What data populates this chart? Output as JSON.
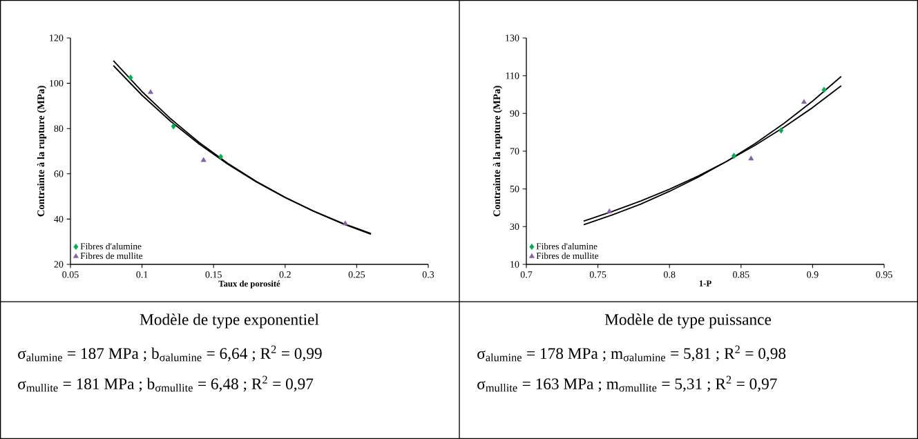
{
  "chart_data": [
    {
      "type": "scatter",
      "xlabel": "Taux de porosité",
      "ylabel": "Contrainte à la rupture (MPa)",
      "xlim": [
        0.05,
        0.3
      ],
      "ylim": [
        20,
        120
      ],
      "xticks": [
        0.05,
        0.1,
        0.15,
        0.2,
        0.25,
        0.3
      ],
      "yticks": [
        20,
        40,
        60,
        80,
        100,
        120
      ],
      "legend": "bottom left",
      "annotations": [
        "Modèle de type exponentiel",
        "σ$_{alumine}$ = 187 MPa ; b$_{σalumine}$ = 6,64 ; R$^{2}$ = 0,99",
        "σ$_{mullite}$ = 181 MPa ; b$_{σmullite}$ = 6,48 ; R$^{2}$ = 0,97"
      ],
      "series": [
        {
          "name": "Fibres d'alumine",
          "color": "#00b050",
          "marker": "diamond",
          "x": [
            0.092,
            0.122,
            0.155
          ],
          "values": [
            102.5,
            81,
            67.5
          ]
        },
        {
          "name": "Fibres de mullite",
          "color": "#8064a2",
          "marker": "triangle",
          "x": [
            0.106,
            0.143,
            0.242
          ],
          "values": [
            96,
            66,
            38
          ]
        },
        {
          "type": "line",
          "color": "#000000",
          "line_style": "solid",
          "x": [
            0.08,
            0.1,
            0.12,
            0.14,
            0.16,
            0.18,
            0.2,
            0.22,
            0.24,
            0.26
          ],
          "values": [
            110.0,
            96.3,
            84.3,
            73.8,
            64.6,
            56.6,
            49.6,
            43.4,
            38.0,
            33.3
          ]
        },
        {
          "type": "line",
          "color": "#000000",
          "line_style": "solid",
          "x": [
            0.08,
            0.1,
            0.12,
            0.14,
            0.16,
            0.18,
            0.2,
            0.22,
            0.24,
            0.26
          ],
          "values": [
            107.8,
            94.7,
            83.2,
            73.1,
            64.2,
            56.4,
            49.5,
            43.5,
            38.2,
            33.6
          ]
        }
      ]
    },
    {
      "type": "scatter",
      "xlabel": "1-P",
      "ylabel": "Contrainte à la rupture (MPa)",
      "xlim": [
        0.7,
        0.95
      ],
      "ylim": [
        10,
        130
      ],
      "xticks": [
        0.7,
        0.75,
        0.8,
        0.85,
        0.9,
        0.95
      ],
      "yticks": [
        10,
        30,
        50,
        70,
        90,
        110,
        130
      ],
      "legend": "bottom left",
      "annotations": [
        "Modèle de type puissance",
        "σ$_{alumine}$ = 178 MPa ; m$_{σalumine}$ = 5,81 ; R$^{2}$ = 0,98",
        "σ$_{mullite}$ = 163 MPa ; m$_{σmullite}$ = 5,31 ; R$^{2}$ = 0,97"
      ],
      "series": [
        {
          "name": "Fibres d'alumine",
          "color": "#00b050",
          "marker": "diamond",
          "x": [
            0.908,
            0.878,
            0.845
          ],
          "values": [
            102.5,
            81,
            67.5
          ]
        },
        {
          "name": "Fibres de mullite",
          "color": "#8064a2",
          "marker": "triangle",
          "x": [
            0.894,
            0.857,
            0.758
          ],
          "values": [
            96,
            66,
            38
          ]
        },
        {
          "type": "line",
          "color": "#000000",
          "line_style": "solid",
          "x": [
            0.74,
            0.76,
            0.78,
            0.8,
            0.82,
            0.84,
            0.86,
            0.88,
            0.9,
            0.92
          ],
          "values": [
            31.0,
            36.2,
            42.0,
            48.7,
            56.2,
            64.6,
            74.1,
            84.7,
            96.5,
            109.6
          ]
        },
        {
          "type": "line",
          "color": "#000000",
          "line_style": "solid",
          "x": [
            0.74,
            0.76,
            0.78,
            0.8,
            0.82,
            0.84,
            0.86,
            0.88,
            0.9,
            0.92
          ],
          "values": [
            32.9,
            38.0,
            43.6,
            49.8,
            56.8,
            64.6,
            73.2,
            82.7,
            93.1,
            104.7
          ]
        }
      ]
    }
  ]
}
